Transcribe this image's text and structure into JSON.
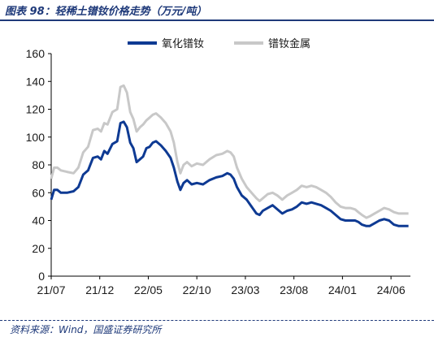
{
  "header": {
    "title": "图表 98：轻稀土镨钕价格走势（万元/吨）"
  },
  "footer": {
    "source": "资料来源：Wind，国盛证券研究所"
  },
  "colors": {
    "accent": "#1f3a7a",
    "series_oxide": "#0e3a93",
    "series_metal": "#c8c8c8"
  },
  "chart_data": {
    "type": "line",
    "title": "图表 98：轻稀土镨钕价格走势（万元/吨）",
    "ylim": [
      0,
      160
    ],
    "yticks": [
      0,
      20,
      40,
      60,
      80,
      100,
      120,
      140,
      160
    ],
    "xticks": [
      "21/07",
      "21/12",
      "22/05",
      "22/10",
      "23/03",
      "23/08",
      "24/01",
      "24/06"
    ],
    "xlim": [
      "2021-07",
      "2024-08"
    ],
    "grid": false,
    "legend_position": "top-right",
    "series": [
      {
        "name": "氧化镨钕",
        "color": "#0e3a93",
        "points": [
          [
            "2021-07-01",
            55
          ],
          [
            "2021-07-10",
            62
          ],
          [
            "2021-07-20",
            62
          ],
          [
            "2021-08-01",
            60
          ],
          [
            "2021-08-20",
            60
          ],
          [
            "2021-09-10",
            61
          ],
          [
            "2021-09-25",
            64
          ],
          [
            "2021-10-10",
            73
          ],
          [
            "2021-10-25",
            76
          ],
          [
            "2021-11-10",
            85
          ],
          [
            "2021-11-25",
            86
          ],
          [
            "2021-12-05",
            84
          ],
          [
            "2021-12-15",
            90
          ],
          [
            "2021-12-25",
            88
          ],
          [
            "2022-01-10",
            95
          ],
          [
            "2022-01-25",
            97
          ],
          [
            "2022-02-05",
            110
          ],
          [
            "2022-02-15",
            111
          ],
          [
            "2022-02-25",
            107
          ],
          [
            "2022-03-05",
            96
          ],
          [
            "2022-03-15",
            92
          ],
          [
            "2022-03-25",
            82
          ],
          [
            "2022-04-05",
            84
          ],
          [
            "2022-04-15",
            86
          ],
          [
            "2022-04-25",
            92
          ],
          [
            "2022-05-05",
            93
          ],
          [
            "2022-05-15",
            96
          ],
          [
            "2022-05-25",
            97
          ],
          [
            "2022-06-10",
            94
          ],
          [
            "2022-06-25",
            90
          ],
          [
            "2022-07-10",
            85
          ],
          [
            "2022-07-20",
            78
          ],
          [
            "2022-08-01",
            68
          ],
          [
            "2022-08-10",
            62
          ],
          [
            "2022-08-20",
            67
          ],
          [
            "2022-09-01",
            69
          ],
          [
            "2022-09-15",
            66
          ],
          [
            "2022-10-01",
            67
          ],
          [
            "2022-10-20",
            66
          ],
          [
            "2022-11-10",
            69
          ],
          [
            "2022-12-01",
            71
          ],
          [
            "2022-12-20",
            72
          ],
          [
            "2023-01-05",
            74
          ],
          [
            "2023-01-15",
            73
          ],
          [
            "2023-01-25",
            70
          ],
          [
            "2023-02-05",
            64
          ],
          [
            "2023-02-20",
            58
          ],
          [
            "2023-03-05",
            55
          ],
          [
            "2023-03-20",
            50
          ],
          [
            "2023-04-05",
            45
          ],
          [
            "2023-04-15",
            44
          ],
          [
            "2023-04-25",
            47
          ],
          [
            "2023-05-10",
            49
          ],
          [
            "2023-05-25",
            51
          ],
          [
            "2023-06-10",
            48
          ],
          [
            "2023-06-25",
            45
          ],
          [
            "2023-07-10",
            47
          ],
          [
            "2023-07-25",
            48
          ],
          [
            "2023-08-10",
            50
          ],
          [
            "2023-08-25",
            53
          ],
          [
            "2023-09-10",
            52
          ],
          [
            "2023-09-25",
            53
          ],
          [
            "2023-10-10",
            52
          ],
          [
            "2023-10-25",
            51
          ],
          [
            "2023-11-10",
            49
          ],
          [
            "2023-11-25",
            47
          ],
          [
            "2023-12-10",
            44
          ],
          [
            "2023-12-25",
            41
          ],
          [
            "2024-01-10",
            40
          ],
          [
            "2024-01-25",
            40
          ],
          [
            "2024-02-10",
            40
          ],
          [
            "2024-02-20",
            39
          ],
          [
            "2024-03-01",
            37
          ],
          [
            "2024-03-15",
            36
          ],
          [
            "2024-03-25",
            36
          ],
          [
            "2024-04-10",
            38
          ],
          [
            "2024-04-25",
            40
          ],
          [
            "2024-05-10",
            41
          ],
          [
            "2024-05-25",
            40
          ],
          [
            "2024-06-10",
            37
          ],
          [
            "2024-06-25",
            36
          ],
          [
            "2024-07-10",
            36
          ],
          [
            "2024-07-25",
            36
          ]
        ]
      },
      {
        "name": "镨钕金属",
        "color": "#c8c8c8",
        "points": [
          [
            "2021-07-01",
            70
          ],
          [
            "2021-07-10",
            78
          ],
          [
            "2021-07-20",
            78
          ],
          [
            "2021-08-01",
            76
          ],
          [
            "2021-08-20",
            75
          ],
          [
            "2021-09-10",
            74
          ],
          [
            "2021-09-25",
            78
          ],
          [
            "2021-10-10",
            89
          ],
          [
            "2021-10-25",
            93
          ],
          [
            "2021-11-10",
            105
          ],
          [
            "2021-11-25",
            106
          ],
          [
            "2021-12-05",
            104
          ],
          [
            "2021-12-15",
            110
          ],
          [
            "2021-12-25",
            109
          ],
          [
            "2022-01-10",
            118
          ],
          [
            "2022-01-25",
            120
          ],
          [
            "2022-02-05",
            136
          ],
          [
            "2022-02-15",
            137
          ],
          [
            "2022-02-25",
            132
          ],
          [
            "2022-03-05",
            118
          ],
          [
            "2022-03-15",
            113
          ],
          [
            "2022-03-25",
            104
          ],
          [
            "2022-04-05",
            107
          ],
          [
            "2022-04-15",
            109
          ],
          [
            "2022-04-25",
            112
          ],
          [
            "2022-05-05",
            114
          ],
          [
            "2022-05-15",
            116
          ],
          [
            "2022-05-25",
            117
          ],
          [
            "2022-06-10",
            114
          ],
          [
            "2022-06-25",
            110
          ],
          [
            "2022-07-10",
            104
          ],
          [
            "2022-07-20",
            96
          ],
          [
            "2022-08-01",
            82
          ],
          [
            "2022-08-10",
            74
          ],
          [
            "2022-08-20",
            80
          ],
          [
            "2022-09-01",
            82
          ],
          [
            "2022-09-15",
            79
          ],
          [
            "2022-10-01",
            81
          ],
          [
            "2022-10-20",
            80
          ],
          [
            "2022-11-10",
            84
          ],
          [
            "2022-12-01",
            87
          ],
          [
            "2022-12-20",
            88
          ],
          [
            "2023-01-05",
            90
          ],
          [
            "2023-01-15",
            89
          ],
          [
            "2023-01-25",
            86
          ],
          [
            "2023-02-05",
            78
          ],
          [
            "2023-02-20",
            70
          ],
          [
            "2023-03-05",
            64
          ],
          [
            "2023-03-20",
            60
          ],
          [
            "2023-04-05",
            56
          ],
          [
            "2023-04-15",
            54
          ],
          [
            "2023-04-25",
            56
          ],
          [
            "2023-05-10",
            59
          ],
          [
            "2023-05-25",
            60
          ],
          [
            "2023-06-10",
            58
          ],
          [
            "2023-06-25",
            55
          ],
          [
            "2023-07-10",
            58
          ],
          [
            "2023-07-25",
            60
          ],
          [
            "2023-08-10",
            62
          ],
          [
            "2023-08-25",
            65
          ],
          [
            "2023-09-10",
            64
          ],
          [
            "2023-09-25",
            65
          ],
          [
            "2023-10-10",
            64
          ],
          [
            "2023-10-25",
            62
          ],
          [
            "2023-11-10",
            60
          ],
          [
            "2023-11-25",
            57
          ],
          [
            "2023-12-10",
            53
          ],
          [
            "2023-12-25",
            50
          ],
          [
            "2024-01-10",
            49
          ],
          [
            "2024-01-25",
            49
          ],
          [
            "2024-02-10",
            48
          ],
          [
            "2024-02-20",
            46
          ],
          [
            "2024-03-01",
            44
          ],
          [
            "2024-03-15",
            42
          ],
          [
            "2024-03-25",
            43
          ],
          [
            "2024-04-10",
            45
          ],
          [
            "2024-04-25",
            47
          ],
          [
            "2024-05-10",
            49
          ],
          [
            "2024-05-25",
            48
          ],
          [
            "2024-06-10",
            46
          ],
          [
            "2024-06-25",
            45
          ],
          [
            "2024-07-10",
            45
          ],
          [
            "2024-07-25",
            45
          ]
        ]
      }
    ]
  }
}
